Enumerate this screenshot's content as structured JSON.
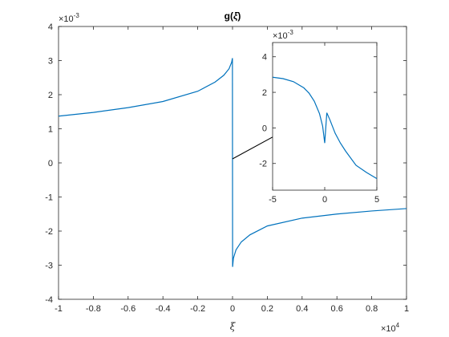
{
  "chart_data": [
    {
      "type": "line",
      "title_main": "g(",
      "title_sym": "ξ",
      "title_close": ")",
      "xlabel": "ξ",
      "ylabel": "",
      "x_exponent_label": "×10",
      "x_exponent_power": "4",
      "y_exponent_label": "×10",
      "y_exponent_power": "-3",
      "xlim": [
        -10000,
        10000
      ],
      "ylim": [
        -0.004,
        0.004
      ],
      "x_ticks": [
        -1,
        -0.8,
        -0.6,
        -0.4,
        -0.2,
        0,
        0.2,
        0.4,
        0.6,
        0.8,
        1
      ],
      "x_tick_labels": [
        "-1",
        "-0.8",
        "-0.6",
        "-0.4",
        "-0.2",
        "0",
        "0.2",
        "0.4",
        "0.6",
        "0.8",
        "1"
      ],
      "y_ticks": [
        -4,
        -3,
        -2,
        -1,
        0,
        1,
        2,
        3,
        4
      ],
      "y_tick_labels": [
        "-4",
        "-3",
        "-2",
        "-1",
        "0",
        "1",
        "2",
        "3",
        "4"
      ],
      "grid": false,
      "series": [
        {
          "color": "#0072bd",
          "x": [
            -10000,
            -8000,
            -6000,
            -4000,
            -2000,
            -1000,
            -500,
            -200,
            -50,
            -5,
            0,
            5,
            50,
            200,
            500,
            1000,
            2000,
            4000,
            6000,
            8000,
            10000
          ],
          "y": [
            0.00137,
            0.00148,
            0.00162,
            0.0018,
            0.0021,
            0.00237,
            0.00257,
            0.00276,
            0.00295,
            0.00307,
            0.0,
            -0.00305,
            -0.0028,
            -0.00255,
            -0.00232,
            -0.00211,
            -0.00185,
            -0.00162,
            -0.0015,
            -0.00141,
            -0.00134
          ]
        }
      ]
    },
    {
      "type": "line",
      "title": "",
      "inset": true,
      "y_exponent_label": "×10",
      "y_exponent_power": "-3",
      "xlim": [
        -5,
        5
      ],
      "ylim": [
        -0.0035,
        0.0048
      ],
      "x_ticks": [
        -5,
        0,
        5
      ],
      "x_tick_labels": [
        "-5",
        "0",
        "5"
      ],
      "y_ticks": [
        -2,
        0,
        2,
        4
      ],
      "y_tick_labels": [
        "-2",
        "0",
        "2",
        "4"
      ],
      "grid": false,
      "series": [
        {
          "color": "#0072bd",
          "x": [
            -5,
            -4,
            -3,
            -2,
            -1.5,
            -1,
            -0.5,
            -0.2,
            0,
            0.2,
            0.5,
            1,
            1.5,
            2,
            3,
            4,
            5
          ],
          "y": [
            0.00285,
            0.00277,
            0.0026,
            0.00225,
            0.00195,
            0.0015,
            0.0008,
            0.0001,
            -0.00085,
            0.00085,
            0.00045,
            -0.0003,
            -0.00085,
            -0.0013,
            -0.0021,
            -0.0025,
            -0.00285
          ]
        }
      ]
    }
  ]
}
